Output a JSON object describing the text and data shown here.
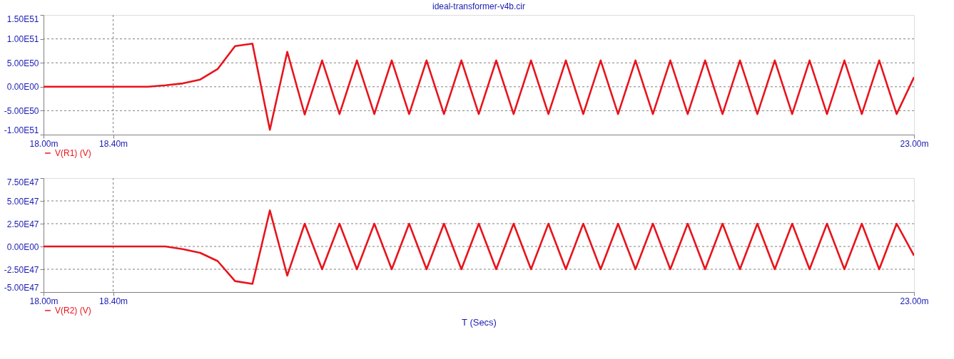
{
  "chart_data": [
    {
      "type": "line",
      "title": "ideal-transformer-v4b.cir",
      "x": [
        18.0,
        18.1,
        18.2,
        18.3,
        18.4,
        18.5,
        18.6,
        18.7,
        18.8,
        18.9,
        19.0,
        19.1,
        19.2,
        19.3,
        19.4,
        19.5,
        19.6,
        19.7,
        19.8,
        19.9,
        20.0,
        20.1,
        20.2,
        20.3,
        20.4,
        20.5,
        20.6,
        20.7,
        20.8,
        20.9,
        21.0,
        21.1,
        21.2,
        21.3,
        21.4,
        21.5,
        21.6,
        21.7,
        21.8,
        21.9,
        22.0,
        22.1,
        22.2,
        22.3,
        22.4,
        22.5,
        22.6,
        22.7,
        22.8,
        22.9,
        23.0
      ],
      "series": [
        {
          "name": "V(R1) (V)",
          "color": "#e8141c",
          "values": [
            0,
            0,
            0,
            0,
            0,
            0,
            0,
            3e+49,
            7e+49,
            1.5e+50,
            3.7e+50,
            8.5e+50,
            9e+50,
            -9e+50,
            7.3e+50,
            -5.8e+50,
            5.5e+50,
            -5.7e+50,
            5.5e+50,
            -5.7e+50,
            5.5e+50,
            -5.7e+50,
            5.5e+50,
            -5.7e+50,
            5.5e+50,
            -5.7e+50,
            5.5e+50,
            -5.7e+50,
            5.5e+50,
            -5.7e+50,
            5.5e+50,
            -5.7e+50,
            5.5e+50,
            -5.7e+50,
            5.5e+50,
            -5.7e+50,
            5.5e+50,
            -5.7e+50,
            5.5e+50,
            -5.7e+50,
            5.5e+50,
            -5.7e+50,
            5.5e+50,
            -5.7e+50,
            5.5e+50,
            -5.7e+50,
            5.5e+50,
            -5.7e+50,
            5.5e+50,
            -5.7e+50,
            2e+50
          ]
        }
      ],
      "xlim": [
        18,
        23
      ],
      "xticks": [
        {
          "value": 18,
          "label": "18.00m"
        },
        {
          "value": 18.4,
          "label": "18.40m"
        },
        {
          "value": 23,
          "label": "23.00m"
        }
      ],
      "ylim": [
        -1e+51,
        1.5e+51
      ],
      "yticks": [
        {
          "value": -1e+51,
          "label": "-1.00E51"
        },
        {
          "value": -5e+50,
          "label": "-5.00E50"
        },
        {
          "value": 0,
          "label": "0.00E00"
        },
        {
          "value": 5e+50,
          "label": "5.00E50"
        },
        {
          "value": 1e+51,
          "label": "1.00E51"
        },
        {
          "value": 1.5e+51,
          "label": "1.50E51"
        }
      ],
      "grid": true,
      "legend": "bottom left"
    },
    {
      "type": "line",
      "xlabel": "T (Secs)",
      "x": [
        18.0,
        18.1,
        18.2,
        18.3,
        18.4,
        18.5,
        18.6,
        18.7,
        18.8,
        18.9,
        19.0,
        19.1,
        19.2,
        19.3,
        19.4,
        19.5,
        19.6,
        19.7,
        19.8,
        19.9,
        20.0,
        20.1,
        20.2,
        20.3,
        20.4,
        20.5,
        20.6,
        20.7,
        20.8,
        20.9,
        21.0,
        21.1,
        21.2,
        21.3,
        21.4,
        21.5,
        21.6,
        21.7,
        21.8,
        21.9,
        22.0,
        22.1,
        22.2,
        22.3,
        22.4,
        22.5,
        22.6,
        22.7,
        22.8,
        22.9,
        23.0
      ],
      "series": [
        {
          "name": "V(R2) (V)",
          "color": "#e8141c",
          "values": [
            0,
            0,
            0,
            0,
            0,
            0,
            0,
            0,
            -3e+46,
            -7e+46,
            -1.6e+47,
            -3.8e+47,
            -4.1e+47,
            3.95e+47,
            -3.2e+47,
            2.5e+47,
            -2.5e+47,
            2.5e+47,
            -2.5e+47,
            2.5e+47,
            -2.5e+47,
            2.5e+47,
            -2.5e+47,
            2.5e+47,
            -2.5e+47,
            2.5e+47,
            -2.5e+47,
            2.5e+47,
            -2.5e+47,
            2.5e+47,
            -2.5e+47,
            2.5e+47,
            -2.5e+47,
            2.5e+47,
            -2.5e+47,
            2.5e+47,
            -2.5e+47,
            2.5e+47,
            -2.5e+47,
            2.5e+47,
            -2.5e+47,
            2.5e+47,
            -2.5e+47,
            2.5e+47,
            -2.5e+47,
            2.5e+47,
            -2.5e+47,
            2.5e+47,
            -2.5e+47,
            2.5e+47,
            -1e+47
          ]
        }
      ],
      "xlim": [
        18,
        23
      ],
      "xticks": [
        {
          "value": 18,
          "label": "18.00m"
        },
        {
          "value": 18.4,
          "label": "18.40m"
        },
        {
          "value": 23,
          "label": "23.00m"
        }
      ],
      "ylim": [
        -5e+47,
        7.5e+47
      ],
      "yticks": [
        {
          "value": -5e+47,
          "label": "-5.00E47"
        },
        {
          "value": -2.5e+47,
          "label": "-2.50E47"
        },
        {
          "value": 0,
          "label": "0.00E00"
        },
        {
          "value": 2.5e+47,
          "label": "2.50E47"
        },
        {
          "value": 5e+47,
          "label": "5.00E47"
        },
        {
          "value": 7.5e+47,
          "label": "7.50E47"
        }
      ],
      "grid": true,
      "legend": "bottom left"
    }
  ]
}
